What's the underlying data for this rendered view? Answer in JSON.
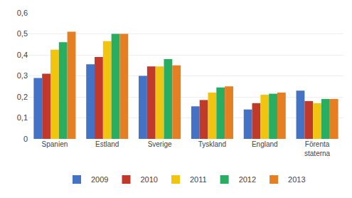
{
  "chart_data": {
    "type": "bar",
    "categories": [
      "Spanien",
      "Estland",
      "Sverige",
      "Tyskland",
      "England",
      "Förenta\nstaterna"
    ],
    "series": [
      {
        "name": "2009",
        "color": "#4472C4",
        "values": [
          0.29,
          0.355,
          0.3,
          0.155,
          0.14,
          0.23
        ]
      },
      {
        "name": "2010",
        "color": "#C0392B",
        "values": [
          0.31,
          0.39,
          0.345,
          0.185,
          0.17,
          0.18
        ]
      },
      {
        "name": "2011",
        "color": "#F1C40F",
        "values": [
          0.425,
          0.465,
          0.345,
          0.22,
          0.21,
          0.17
        ]
      },
      {
        "name": "2012",
        "color": "#27AE60",
        "values": [
          0.46,
          0.5,
          0.38,
          0.245,
          0.215,
          0.19
        ]
      },
      {
        "name": "2013",
        "color": "#E67E22",
        "values": [
          0.51,
          0.5,
          0.35,
          0.25,
          0.22,
          0.19
        ]
      }
    ],
    "ylim": [
      0,
      0.6
    ],
    "yticks": [
      0,
      {
        "value": 0.1,
        "label": "0,1"
      },
      {
        "value": 0.2,
        "label": "0,2"
      },
      {
        "value": 0.3,
        "label": "0,3"
      },
      {
        "value": 0.4,
        "label": "0,4"
      },
      {
        "value": 0.5,
        "label": "0,5"
      },
      {
        "value": 0.6,
        "label": "0,6"
      }
    ],
    "grid": true,
    "legend": "bottom"
  }
}
